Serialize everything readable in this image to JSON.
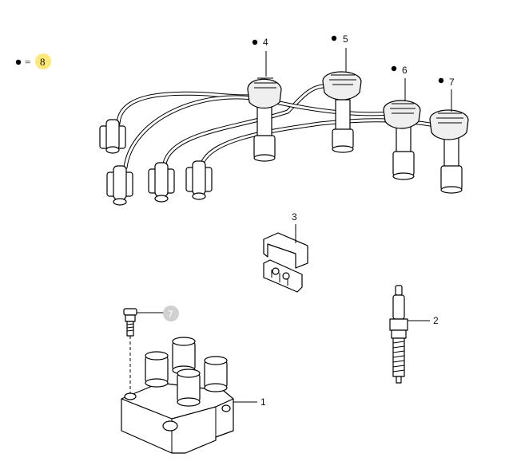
{
  "legend": {
    "symbol": "●",
    "equals": "=",
    "value": "8",
    "highlight_color": "#ffe87a"
  },
  "callouts": {
    "c1": "1",
    "c2": "2",
    "c3": "3",
    "c4": "4",
    "c5": "5",
    "c6": "6",
    "c7": "7",
    "c_bolt": "7"
  },
  "colors": {
    "line": "#000000",
    "faded_marker": "#d0d0d0"
  }
}
